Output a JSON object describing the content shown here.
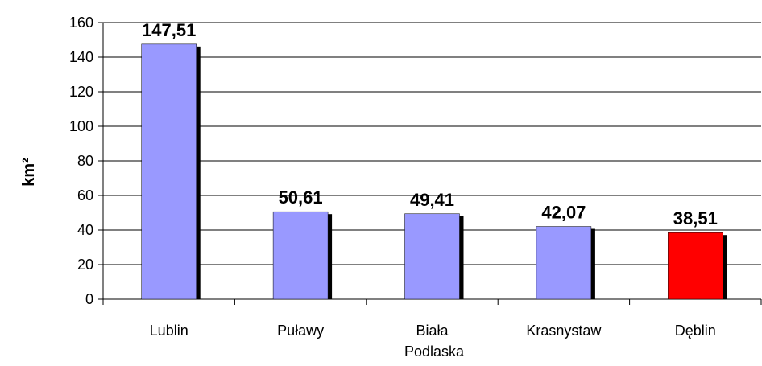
{
  "chart_data": {
    "type": "bar",
    "ylabel": "km²",
    "categories": [
      "Lublin",
      "Puławy",
      "Biała Podlaska",
      "Krasnystaw",
      "Dęblin"
    ],
    "values": [
      147.51,
      50.61,
      49.41,
      42.07,
      38.51
    ],
    "value_labels": [
      "147,51",
      "50,61",
      "49,41",
      "42,07",
      "38,51"
    ],
    "colors": [
      "#9999ff",
      "#9999ff",
      "#9999ff",
      "#9999ff",
      "#ff0000"
    ],
    "ylim": [
      0,
      160
    ],
    "yticks": [
      0,
      20,
      40,
      60,
      80,
      100,
      120,
      140,
      160
    ],
    "grid": true
  }
}
